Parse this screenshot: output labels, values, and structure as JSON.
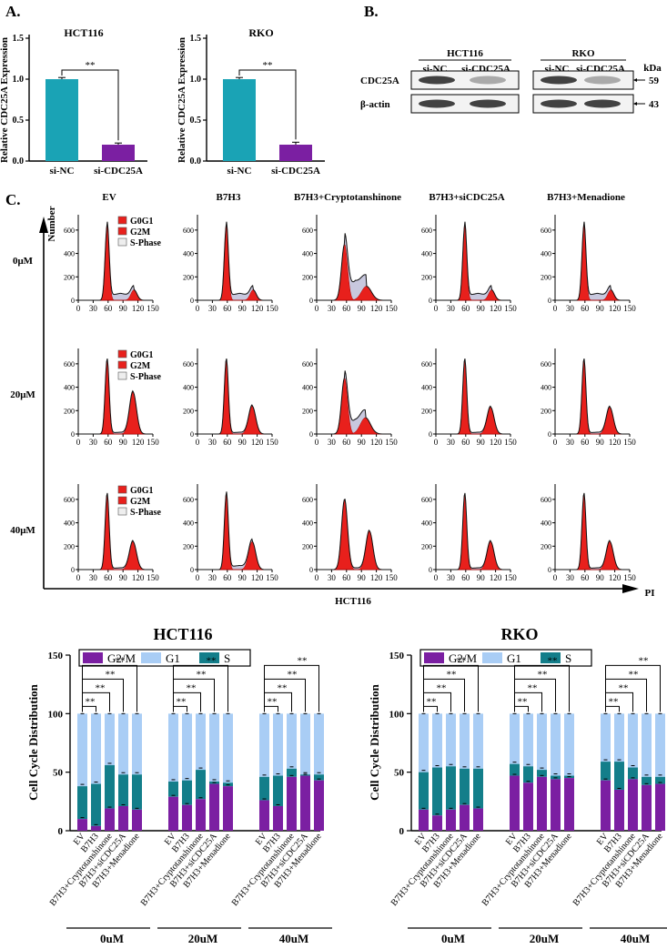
{
  "panel_labels": {
    "a": "A.",
    "b": "B.",
    "c": "C."
  },
  "panel_a": {
    "ylabel": "Relative CDC25A Expression",
    "sig": "**",
    "charts": [
      {
        "title": "HCT116",
        "categories": [
          "si-NC",
          "si-CDC25A"
        ]
      },
      {
        "title": "RKO",
        "categories": [
          "si-NC",
          "si-CDC25A"
        ]
      }
    ]
  },
  "panel_b": {
    "groups": [
      {
        "cell": "HCT116",
        "lanes": [
          "si-NC",
          "si-CDC25A"
        ]
      },
      {
        "cell": "RKO",
        "lanes": [
          "si-NC",
          "si-CDC25A"
        ]
      }
    ],
    "kda_label": "kDa",
    "rows": [
      {
        "protein": "CDC25A",
        "kda": "59"
      },
      {
        "protein": "β-actin",
        "kda": "43"
      }
    ]
  },
  "panel_c": {
    "columns": [
      "EV",
      "B7H3",
      "B7H3+Cryptotanshinone",
      "B7H3+siCDC25A",
      "B7H3+Menadione"
    ],
    "rows": [
      "0μM",
      "20μM",
      "40μM"
    ],
    "y_axis_label": "Number",
    "x_axis_label": "PI",
    "cell_line": "HCT116",
    "legend": [
      "G0G1",
      "G2M",
      "S-Phase"
    ],
    "x_ticks": [
      "0",
      "30",
      "60",
      "90",
      "120",
      "150"
    ],
    "y_ticks": [
      "0",
      "200",
      "400",
      "600"
    ]
  },
  "chart_data": [
    {
      "type": "bar",
      "title": "HCT116",
      "categories": [
        "si-NC",
        "si-CDC25A"
      ],
      "values": [
        1.0,
        0.2
      ],
      "errors": [
        0.02,
        0.02
      ],
      "ylim": [
        0,
        1.5
      ],
      "yticks": [
        "0.0",
        "0.5",
        "1.0",
        "1.5"
      ],
      "ylabel": "Relative CDC25A Expression",
      "colors": [
        "#1aa3b5",
        "#7b1fa2"
      ],
      "annotation": "**"
    },
    {
      "type": "bar",
      "title": "RKO",
      "categories": [
        "si-NC",
        "si-CDC25A"
      ],
      "values": [
        1.0,
        0.2
      ],
      "errors": [
        0.02,
        0.03
      ],
      "ylim": [
        0,
        1.5
      ],
      "yticks": [
        "0.0",
        "0.5",
        "1.0",
        "1.5"
      ],
      "ylabel": "Relative CDC25A Expression",
      "colors": [
        "#1aa3b5",
        "#7b1fa2"
      ],
      "annotation": "**"
    },
    {
      "type": "bar",
      "stacked": true,
      "title": "HCT116",
      "ylabel": "Cell Cycle Distribution",
      "ylim": [
        0,
        150
      ],
      "yticks": [
        "0",
        "50",
        "100",
        "150"
      ],
      "legend": [
        "G2/M",
        "G1",
        "S"
      ],
      "colors": {
        "G2/M": "#7b1fa2",
        "G1": "#a9cdf5",
        "S": "#137e8a"
      },
      "categories": [
        "EV",
        "B7H3",
        "B7H3+Cryptotanshinone",
        "B7H3+siCDC25A",
        "B7H3+Menadione"
      ],
      "group_labels": [
        "0uM",
        "20uM",
        "40uM"
      ],
      "significance": "**",
      "groups": [
        {
          "G2M": [
            10,
            4,
            19,
            21,
            18
          ],
          "S": [
            28,
            36,
            37,
            27,
            30
          ]
        },
        {
          "G2M": [
            29,
            22,
            27,
            40,
            38
          ],
          "S": [
            13,
            21,
            25,
            2,
            3
          ]
        },
        {
          "G2M": [
            26,
            21,
            46,
            47,
            43
          ],
          "S": [
            20,
            26,
            7,
            1,
            5
          ]
        }
      ]
    },
    {
      "type": "bar",
      "stacked": true,
      "title": "RKO",
      "ylabel": "Cell Cycle Distribution",
      "ylim": [
        0,
        150
      ],
      "yticks": [
        "0",
        "50",
        "100",
        "150"
      ],
      "legend": [
        "G2/M",
        "G1",
        "S"
      ],
      "colors": {
        "G2/M": "#7b1fa2",
        "G1": "#a9cdf5",
        "S": "#137e8a"
      },
      "categories": [
        "EV",
        "B7H3",
        "B7H3+Cryptotanshinone",
        "B7H3+siCDC25A",
        "B7H3+Menadione"
      ],
      "group_labels": [
        "0uM",
        "20uM",
        "40uM"
      ],
      "significance": "**",
      "groups": [
        {
          "G2M": [
            18,
            13,
            18,
            22,
            19
          ],
          "S": [
            32,
            41,
            37,
            31,
            34
          ]
        },
        {
          "G2M": [
            47,
            41,
            46,
            44,
            45
          ],
          "S": [
            10,
            14,
            6,
            3,
            2
          ]
        },
        {
          "G2M": [
            43,
            35,
            44,
            39,
            40
          ],
          "S": [
            16,
            24,
            10,
            7,
            6
          ]
        }
      ]
    }
  ]
}
